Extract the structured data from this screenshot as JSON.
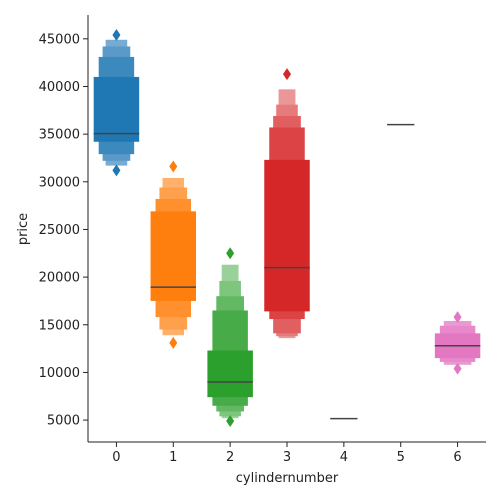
{
  "chart_data": {
    "type": "boxen",
    "xlabel": "cylindernumber",
    "ylabel": "price",
    "ylim": [
      2700,
      47500
    ],
    "yticks": [
      5000,
      10000,
      15000,
      20000,
      25000,
      30000,
      35000,
      40000,
      45000
    ],
    "categories": [
      "0",
      "1",
      "2",
      "3",
      "4",
      "5",
      "6"
    ],
    "series": [
      {
        "category": "0",
        "color": "#1f77b4",
        "median": 35050,
        "boxes": [
          [
            34200,
            41000
          ],
          [
            32900,
            43100
          ],
          [
            32200,
            44200
          ],
          [
            31700,
            44900
          ]
        ],
        "outliers": [
          31200,
          45400
        ]
      },
      {
        "category": "1",
        "color": "#ff7f0e",
        "median": 18950,
        "boxes": [
          [
            17500,
            26900
          ],
          [
            15800,
            28200
          ],
          [
            14500,
            29400
          ],
          [
            13900,
            30400
          ]
        ],
        "outliers": [
          13100,
          31600
        ]
      },
      {
        "category": "2",
        "color": "#2ca02c",
        "median": 9000,
        "boxes": [
          [
            7400,
            12300
          ],
          [
            6500,
            16500
          ],
          [
            5900,
            18000
          ],
          [
            5400,
            19600
          ],
          [
            5200,
            21300
          ]
        ],
        "outliers": [
          4900,
          22500
        ]
      },
      {
        "category": "3",
        "color": "#d62728",
        "median": 21000,
        "boxes": [
          [
            16400,
            32300
          ],
          [
            15600,
            35700
          ],
          [
            14100,
            36900
          ],
          [
            13800,
            38100
          ],
          [
            13600,
            39700
          ]
        ],
        "outliers": [
          41300
        ]
      },
      {
        "category": "4",
        "color": "#444444",
        "median": 5150,
        "boxes": [],
        "outliers": []
      },
      {
        "category": "5",
        "color": "#444444",
        "median": 36000,
        "boxes": [],
        "outliers": []
      },
      {
        "category": "6",
        "color": "#e377c2",
        "median": 12800,
        "boxes": [
          [
            11500,
            14100
          ],
          [
            11100,
            14900
          ],
          [
            10800,
            15400
          ]
        ],
        "outliers": [
          10400,
          15800
        ]
      }
    ]
  }
}
